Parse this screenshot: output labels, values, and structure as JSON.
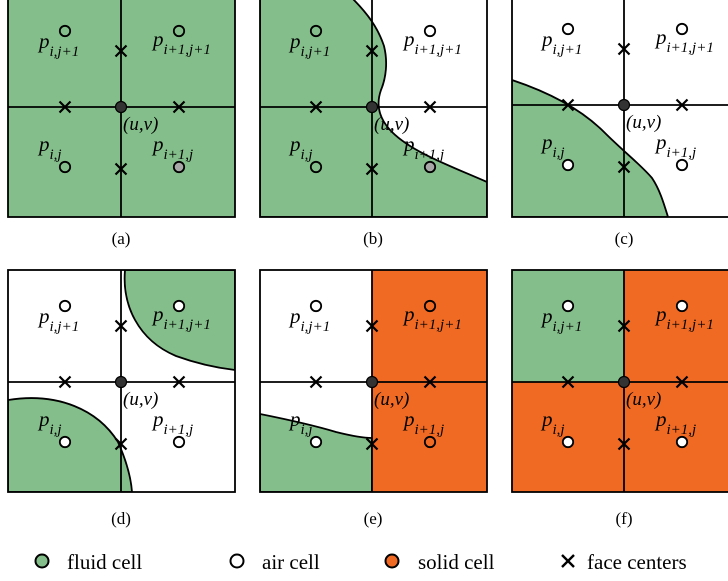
{
  "colors": {
    "fluid": "#84BF8B",
    "solid": "#F06A24",
    "air": "#ffffff",
    "stroke": "#000000",
    "center": "#333333",
    "grey_node": "#A8A8A8"
  },
  "labels": {
    "p_ij1_base": "p",
    "p_ij1_sub": "i,j+1",
    "p_i1j1_base": "p",
    "p_i1j1_sub": "i+1,j+1",
    "p_ij_base": "p",
    "p_ij_sub": "i,j",
    "p_i1j_base": "p",
    "p_i1j_sub": "i+1,j",
    "uv": "(u,v)"
  },
  "panels": [
    {
      "id": "a",
      "caption": "(a)"
    },
    {
      "id": "b",
      "caption": "(b)"
    },
    {
      "id": "c",
      "caption": "(c)"
    },
    {
      "id": "d",
      "caption": "(d)"
    },
    {
      "id": "e",
      "caption": "(e)"
    },
    {
      "id": "f",
      "caption": "(f)"
    }
  ],
  "legend": [
    {
      "icon": "fluid-cell-icon",
      "label": "fluid cell"
    },
    {
      "icon": "air-cell-icon",
      "label": "air cell"
    },
    {
      "icon": "solid-cell-icon",
      "label": "solid cell"
    },
    {
      "icon": "face-center-icon",
      "label": "face centers"
    }
  ]
}
